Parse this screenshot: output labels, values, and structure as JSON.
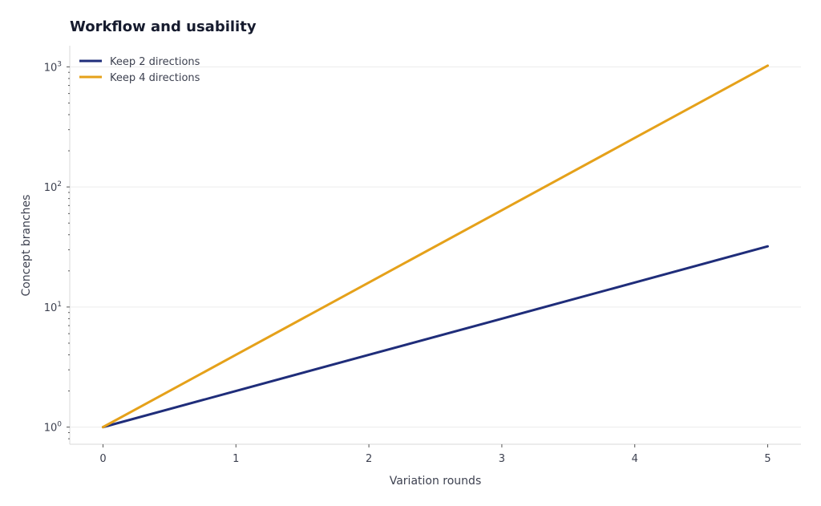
{
  "chart_data": {
    "type": "line",
    "title": "Workflow and usability",
    "xlabel": "Variation rounds",
    "ylabel": "Concept branches",
    "yscale": "log",
    "xlim": [
      -0.25,
      5.25
    ],
    "ylim": [
      0.72,
      1500
    ],
    "x": [
      0,
      1,
      2,
      3,
      4,
      5
    ],
    "x_ticks": [
      "0",
      "1",
      "2",
      "3",
      "4",
      "5"
    ],
    "y_ticks": [
      {
        "value": 1,
        "base": "10",
        "exp": "0"
      },
      {
        "value": 10,
        "base": "10",
        "exp": "1"
      },
      {
        "value": 100,
        "base": "10",
        "exp": "2"
      },
      {
        "value": 1000,
        "base": "10",
        "exp": "3"
      }
    ],
    "grid": "horizontal",
    "legend_position": "top-left",
    "series": [
      {
        "name": "Keep 2 directions",
        "color": "#1f2d7a",
        "values": [
          1,
          2,
          4,
          8,
          16,
          32
        ]
      },
      {
        "name": "Keep 4 directions",
        "color": "#e5a11a",
        "values": [
          1,
          4,
          16,
          64,
          256,
          1024
        ]
      }
    ]
  }
}
